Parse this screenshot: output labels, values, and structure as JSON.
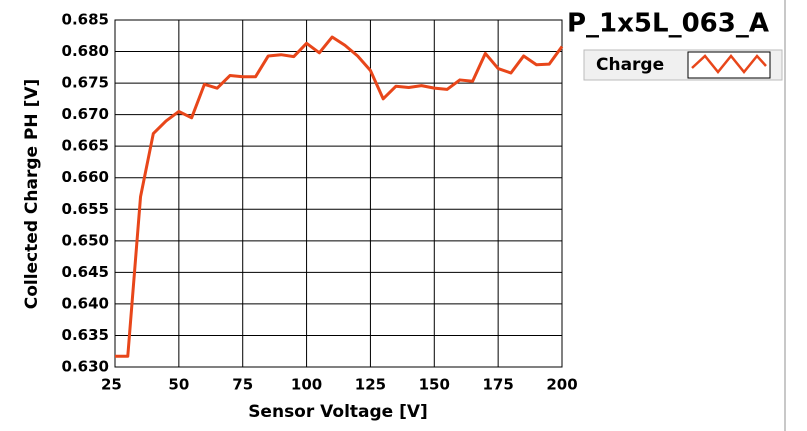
{
  "chart_data": {
    "type": "line",
    "title": "P_1x5L_063_A",
    "x_label": "Sensor Voltage [V]",
    "y_label": "Collected Charge PH [V]",
    "x": [
      25,
      30,
      35,
      40,
      45,
      50,
      55,
      60,
      65,
      70,
      75,
      80,
      85,
      90,
      95,
      100,
      105,
      110,
      115,
      120,
      125,
      130,
      135,
      140,
      145,
      150,
      155,
      160,
      165,
      170,
      175,
      180,
      185,
      190,
      195,
      200
    ],
    "series": [
      {
        "name": "Charge",
        "color": "#e8461a",
        "values": [
          0.6317,
          0.6317,
          0.657,
          0.667,
          0.669,
          0.6705,
          0.6695,
          0.6748,
          0.6742,
          0.6762,
          0.676,
          0.676,
          0.6793,
          0.6795,
          0.6792,
          0.6813,
          0.6798,
          0.6823,
          0.681,
          0.6793,
          0.677,
          0.6725,
          0.6745,
          0.6743,
          0.6746,
          0.6742,
          0.674,
          0.6755,
          0.6753,
          0.6797,
          0.6773,
          0.6766,
          0.6793,
          0.6779,
          0.678,
          0.6808
        ]
      }
    ],
    "xlim": [
      25,
      200
    ],
    "xticks": [
      25,
      50,
      75,
      100,
      125,
      150,
      175,
      200
    ],
    "ylim": [
      0.63,
      0.685
    ],
    "yticks": [
      {
        "value": 0.63,
        "label": "0.630"
      },
      {
        "value": 0.635,
        "label": "0.635"
      },
      {
        "value": 0.64,
        "label": "0.640"
      },
      {
        "value": 0.645,
        "label": "0.645"
      },
      {
        "value": 0.65,
        "label": "0.650"
      },
      {
        "value": 0.655,
        "label": "0.655"
      },
      {
        "value": 0.66,
        "label": "0.660"
      },
      {
        "value": 0.665,
        "label": "0.665"
      },
      {
        "value": 0.67,
        "label": "0.670"
      },
      {
        "value": 0.675,
        "label": "0.675"
      },
      {
        "value": 0.68,
        "label": "0.680"
      },
      {
        "value": 0.685,
        "label": "0.685"
      }
    ],
    "grid": true,
    "legend": "right"
  }
}
